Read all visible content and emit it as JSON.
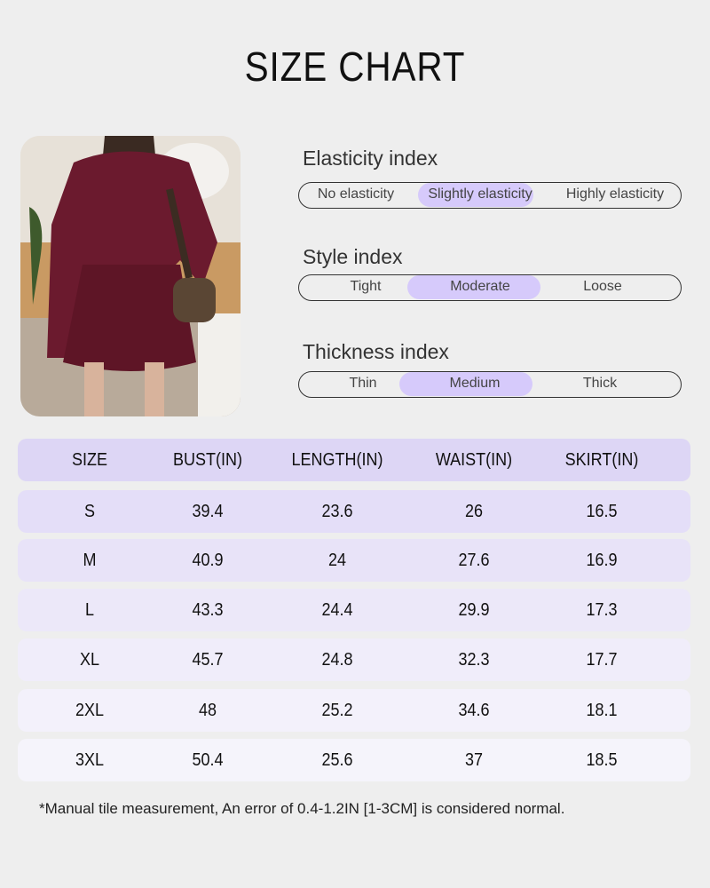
{
  "title": "SIZE CHART",
  "indexes": [
    {
      "title": "Elasticity index",
      "options": [
        "No elasticity",
        "Slightly elasticity",
        "Highly elasticity"
      ],
      "selected": "Slightly elasticity"
    },
    {
      "title": "Style index",
      "options": [
        "Tight",
        "Moderate",
        "Loose"
      ],
      "selected": "Moderate"
    },
    {
      "title": "Thickness index",
      "options": [
        "Thin",
        "Medium",
        "Thick"
      ],
      "selected": "Medium"
    }
  ],
  "table": {
    "headers": [
      "SIZE",
      "BUST(IN)",
      "LENGTH(IN)",
      "WAIST(IN)",
      "SKIRT(IN)"
    ],
    "rows": [
      [
        "S",
        "39.4",
        "23.6",
        "26",
        "16.5"
      ],
      [
        "M",
        "40.9",
        "24",
        "27.6",
        "16.9"
      ],
      [
        "L",
        "43.3",
        "24.4",
        "29.9",
        "17.3"
      ],
      [
        "XL",
        "45.7",
        "24.8",
        "32.3",
        "17.7"
      ],
      [
        "2XL",
        "48",
        "25.2",
        "34.6",
        "18.1"
      ],
      [
        "3XL",
        "50.4",
        "25.6",
        "37",
        "18.5"
      ]
    ]
  },
  "note": "*Manual tile measurement, An error of 0.4-1.2IN [1-3CM] is considered normal.",
  "colors": {
    "background": "#eeeeee",
    "header": "#ddd6f5",
    "highlight": "#d6cafb",
    "garment": "#6b1a2e"
  }
}
